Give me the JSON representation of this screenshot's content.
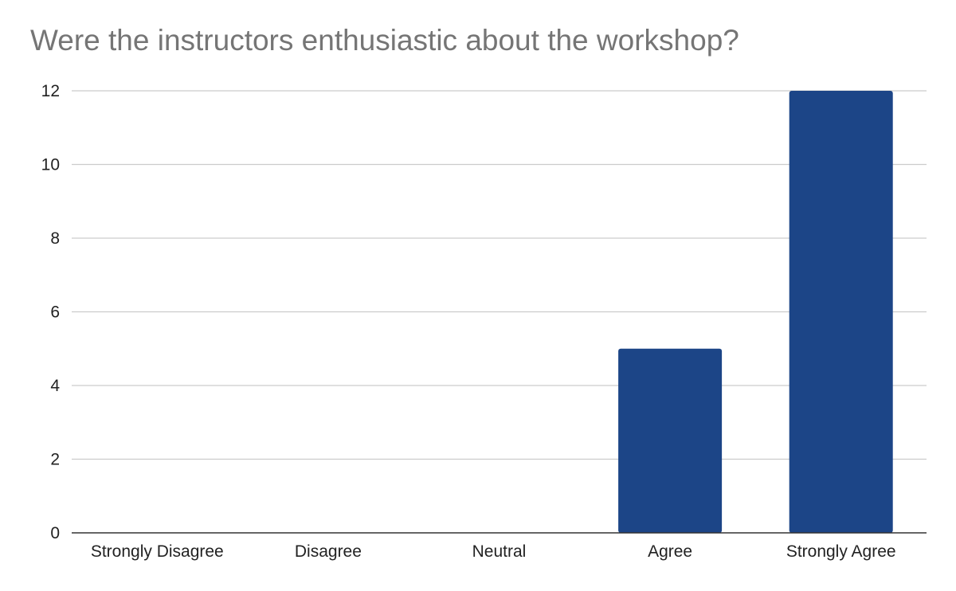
{
  "chart_data": {
    "type": "bar",
    "title": "Were the instructors enthusiastic about the workshop?",
    "xlabel": "",
    "ylabel": "",
    "categories": [
      "Strongly Disagree",
      "Disagree",
      "Neutral",
      "Agree",
      "Strongly Agree"
    ],
    "values": [
      0,
      0,
      0,
      5,
      12
    ],
    "ylim": [
      0,
      12
    ],
    "yticks": [
      0,
      2,
      4,
      6,
      8,
      10,
      12
    ],
    "grid": true,
    "legend": "none",
    "bar_color": "#1c4587",
    "grid_color": "#cccccc",
    "axis_color": "#333333"
  }
}
